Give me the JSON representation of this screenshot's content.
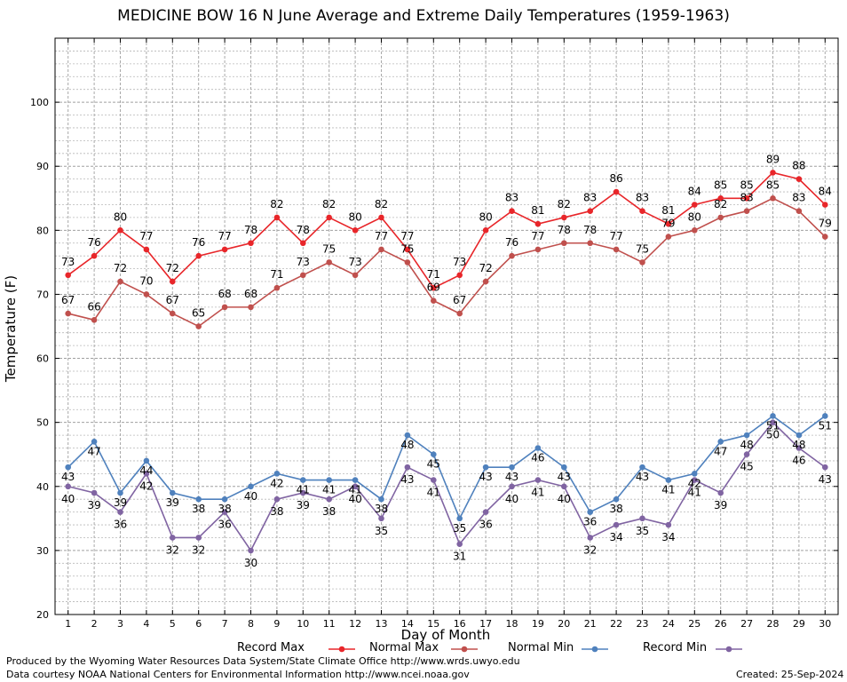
{
  "colors": {
    "record_max": "#e8262a",
    "normal_max": "#c0504d",
    "normal_min": "#4f81bd",
    "record_min": "#8064a2"
  },
  "footer": {
    "line1": "Produced by the Wyoming Water Resources Data System/State Climate Office http://www.wrds.uwyo.edu",
    "line2": "Data courtesy NOAA National Centers for Environmental Information http://www.ncei.noaa.gov",
    "created": "Created:  25-Sep-2024"
  },
  "chart_data": {
    "type": "line",
    "title": "MEDICINE BOW 16 N June Average and Extreme Daily Temperatures (1959-1963)",
    "xlabel": "Day of Month",
    "ylabel": "Temperature (F)",
    "xlim": [
      0.5,
      30.5
    ],
    "ylim": [
      20,
      110
    ],
    "y_ticks": [
      20,
      30,
      40,
      50,
      60,
      70,
      80,
      90,
      100
    ],
    "x": [
      1,
      2,
      3,
      4,
      5,
      6,
      7,
      8,
      9,
      10,
      11,
      12,
      13,
      14,
      15,
      16,
      17,
      18,
      19,
      20,
      21,
      22,
      23,
      24,
      25,
      26,
      27,
      28,
      29,
      30
    ],
    "grid": true,
    "legend_position": "bottom",
    "series": [
      {
        "name": "Record Max",
        "color_key": "record_max",
        "values": [
          73,
          76,
          80,
          77,
          72,
          76,
          77,
          78,
          82,
          78,
          82,
          80,
          82,
          77,
          71,
          73,
          80,
          83,
          81,
          82,
          83,
          86,
          83,
          81,
          84,
          85,
          85,
          89,
          88,
          84
        ]
      },
      {
        "name": "Normal Max",
        "color_key": "normal_max",
        "values": [
          67,
          66,
          72,
          70,
          67,
          65,
          68,
          68,
          71,
          73,
          75,
          73,
          77,
          75,
          69,
          67,
          72,
          76,
          77,
          78,
          78,
          77,
          75,
          79,
          80,
          82,
          83,
          85,
          83,
          79
        ]
      },
      {
        "name": "Normal Min",
        "color_key": "normal_min",
        "values": [
          43,
          47,
          39,
          44,
          39,
          38,
          38,
          40,
          42,
          41,
          41,
          41,
          38,
          48,
          45,
          35,
          43,
          43,
          46,
          43,
          36,
          38,
          43,
          41,
          42,
          47,
          48,
          51,
          48,
          51
        ]
      },
      {
        "name": "Record Min",
        "color_key": "record_min",
        "values": [
          40,
          39,
          36,
          42,
          32,
          32,
          36,
          30,
          38,
          39,
          38,
          40,
          35,
          43,
          41,
          31,
          36,
          40,
          41,
          40,
          32,
          34,
          35,
          34,
          41,
          39,
          45,
          50,
          46,
          43
        ]
      }
    ]
  }
}
